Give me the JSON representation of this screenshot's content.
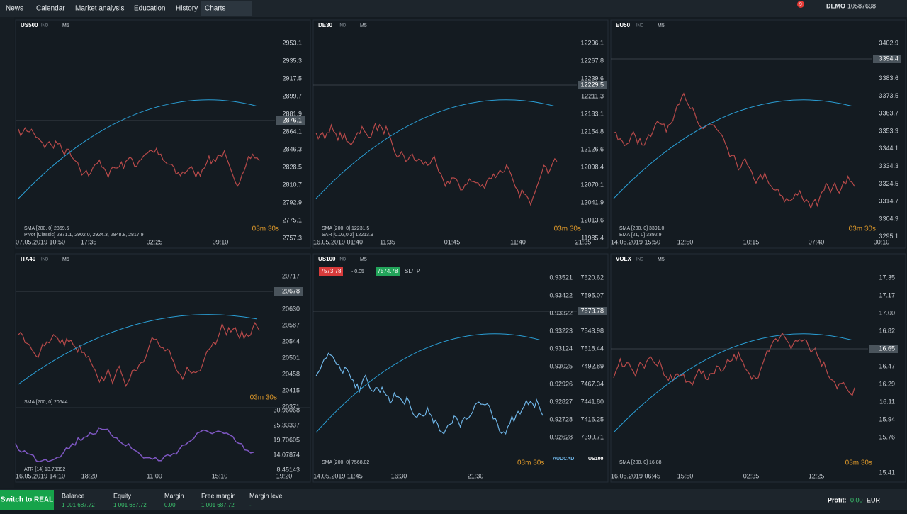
{
  "nav": {
    "tabs": [
      "News",
      "Calendar",
      "Market analysis",
      "Education",
      "History",
      "Charts"
    ],
    "notifications": "9",
    "account": "DEMO",
    "account_id": "10587698"
  },
  "panels": [
    {
      "symbol": "US500",
      "badge": "IND",
      "timeframe": "M5",
      "prices": [
        "2953.1",
        "2935.3",
        "2917.5",
        "2899.7",
        "2881.9",
        "2864.1",
        "2846.3",
        "2828.5",
        "2810.7",
        "2792.9",
        "2775.1",
        "2757.3"
      ],
      "current": "2876.1",
      "times": [
        "07.05.2019 10:50",
        "17:35",
        "02:25",
        "09:10"
      ],
      "indicators": [
        "SMA [200, 0] 2869.6",
        "Pivot [Classic] 2871.1, 2902.0, 2924.3, 2848.8, 2817.9"
      ],
      "timer": "03m 30s"
    },
    {
      "symbol": "DE30",
      "badge": "IND",
      "timeframe": "M5",
      "prices": [
        "12296.1",
        "12267.8",
        "12239.6",
        "12211.3",
        "12183.1",
        "12154.8",
        "12126.6",
        "12098.4",
        "12070.1",
        "12041.9",
        "12013.6",
        "11985.4"
      ],
      "current": "12229.5",
      "times": [
        "16.05.2019 01:40",
        "11:35",
        "01:45",
        "11:40",
        "21:35"
      ],
      "indicators": [
        "SMA [200, 0] 12231.5",
        "SAR [0.02,0.2] 12213.9"
      ],
      "timer": "03m 30s"
    },
    {
      "symbol": "EU50",
      "badge": "IND",
      "timeframe": "M5",
      "prices": [
        "3402.9",
        "3383.6",
        "3373.5",
        "3363.7",
        "3353.9",
        "3344.1",
        "3334.3",
        "3324.5",
        "3314.7",
        "3304.9",
        "3295.1"
      ],
      "current": "3394.4",
      "times": [
        "14.05.2019 15:50",
        "12:50",
        "10:15",
        "07:40",
        "00:10"
      ],
      "indicators": [
        "SMA [200, 0] 3391.0",
        "EMA [21, 0] 3392.9"
      ],
      "timer": "03m 30s"
    },
    {
      "symbol": "ITA40",
      "badge": "IND",
      "timeframe": "M5",
      "prices": [
        "20717",
        "20630",
        "20587",
        "20544",
        "20501",
        "20458",
        "20415",
        "20371"
      ],
      "current": "20678",
      "sub_prices": [
        "30.96068",
        "25.33337",
        "19.70605",
        "14.07874",
        "8.45143"
      ],
      "times": [
        "16.05.2019 14:10",
        "18:20",
        "11:00",
        "15:10",
        "19:20"
      ],
      "indicators": [
        "SMA [200, 0] 20644",
        "ATR [14] 13.73392"
      ],
      "timer": "03m 30s"
    },
    {
      "symbol": "US100",
      "badge": "IND",
      "timeframe": "M5",
      "prices": [
        "7620.62",
        "7595.07",
        "7543.98",
        "7518.44",
        "7492.89",
        "7467.34",
        "7441.80",
        "7416.25",
        "7390.71"
      ],
      "current": "7573.78",
      "overlay_prices": [
        "0.93521",
        "0.93422",
        "0.93322",
        "0.93223",
        "0.93124",
        "0.93025",
        "0.92926",
        "0.92827",
        "0.92728",
        "0.92628"
      ],
      "sell": "7573.78",
      "spread": "- 0.05",
      "buy": "7574.78",
      "sltp": "SL/TP",
      "times": [
        "14.05.2019 11:45",
        "16:30",
        "21:30"
      ],
      "indicators": [
        "SMA [200, 0] 7568.02"
      ],
      "legend": [
        "AUDCAD",
        "US100"
      ],
      "timer": "03m 30s"
    },
    {
      "symbol": "VOLX",
      "badge": "IND",
      "timeframe": "M5",
      "prices": [
        "17.35",
        "17.17",
        "17.00",
        "16.82",
        "16.47",
        "16.29",
        "16.11",
        "15.94",
        "15.76",
        "15.41"
      ],
      "current": "16.65",
      "times": [
        "16.05.2019 06:45",
        "15:50",
        "02:35",
        "12:25"
      ],
      "indicators": [
        "SMA [200, 0] 16.88"
      ],
      "timer": "03m 30s"
    }
  ],
  "footer": {
    "switch": "Switch to REAL",
    "fields": [
      {
        "label": "Balance",
        "value": "1 001 687.72"
      },
      {
        "label": "Equity",
        "value": "1 001 687.72"
      },
      {
        "label": "Margin",
        "value": "0.00"
      },
      {
        "label": "Free margin",
        "value": "1 001 687.72"
      },
      {
        "label": "Margin level",
        "value": "-"
      }
    ],
    "profit_label": "Profit:",
    "profit": "0.00",
    "currency": "EUR"
  }
}
